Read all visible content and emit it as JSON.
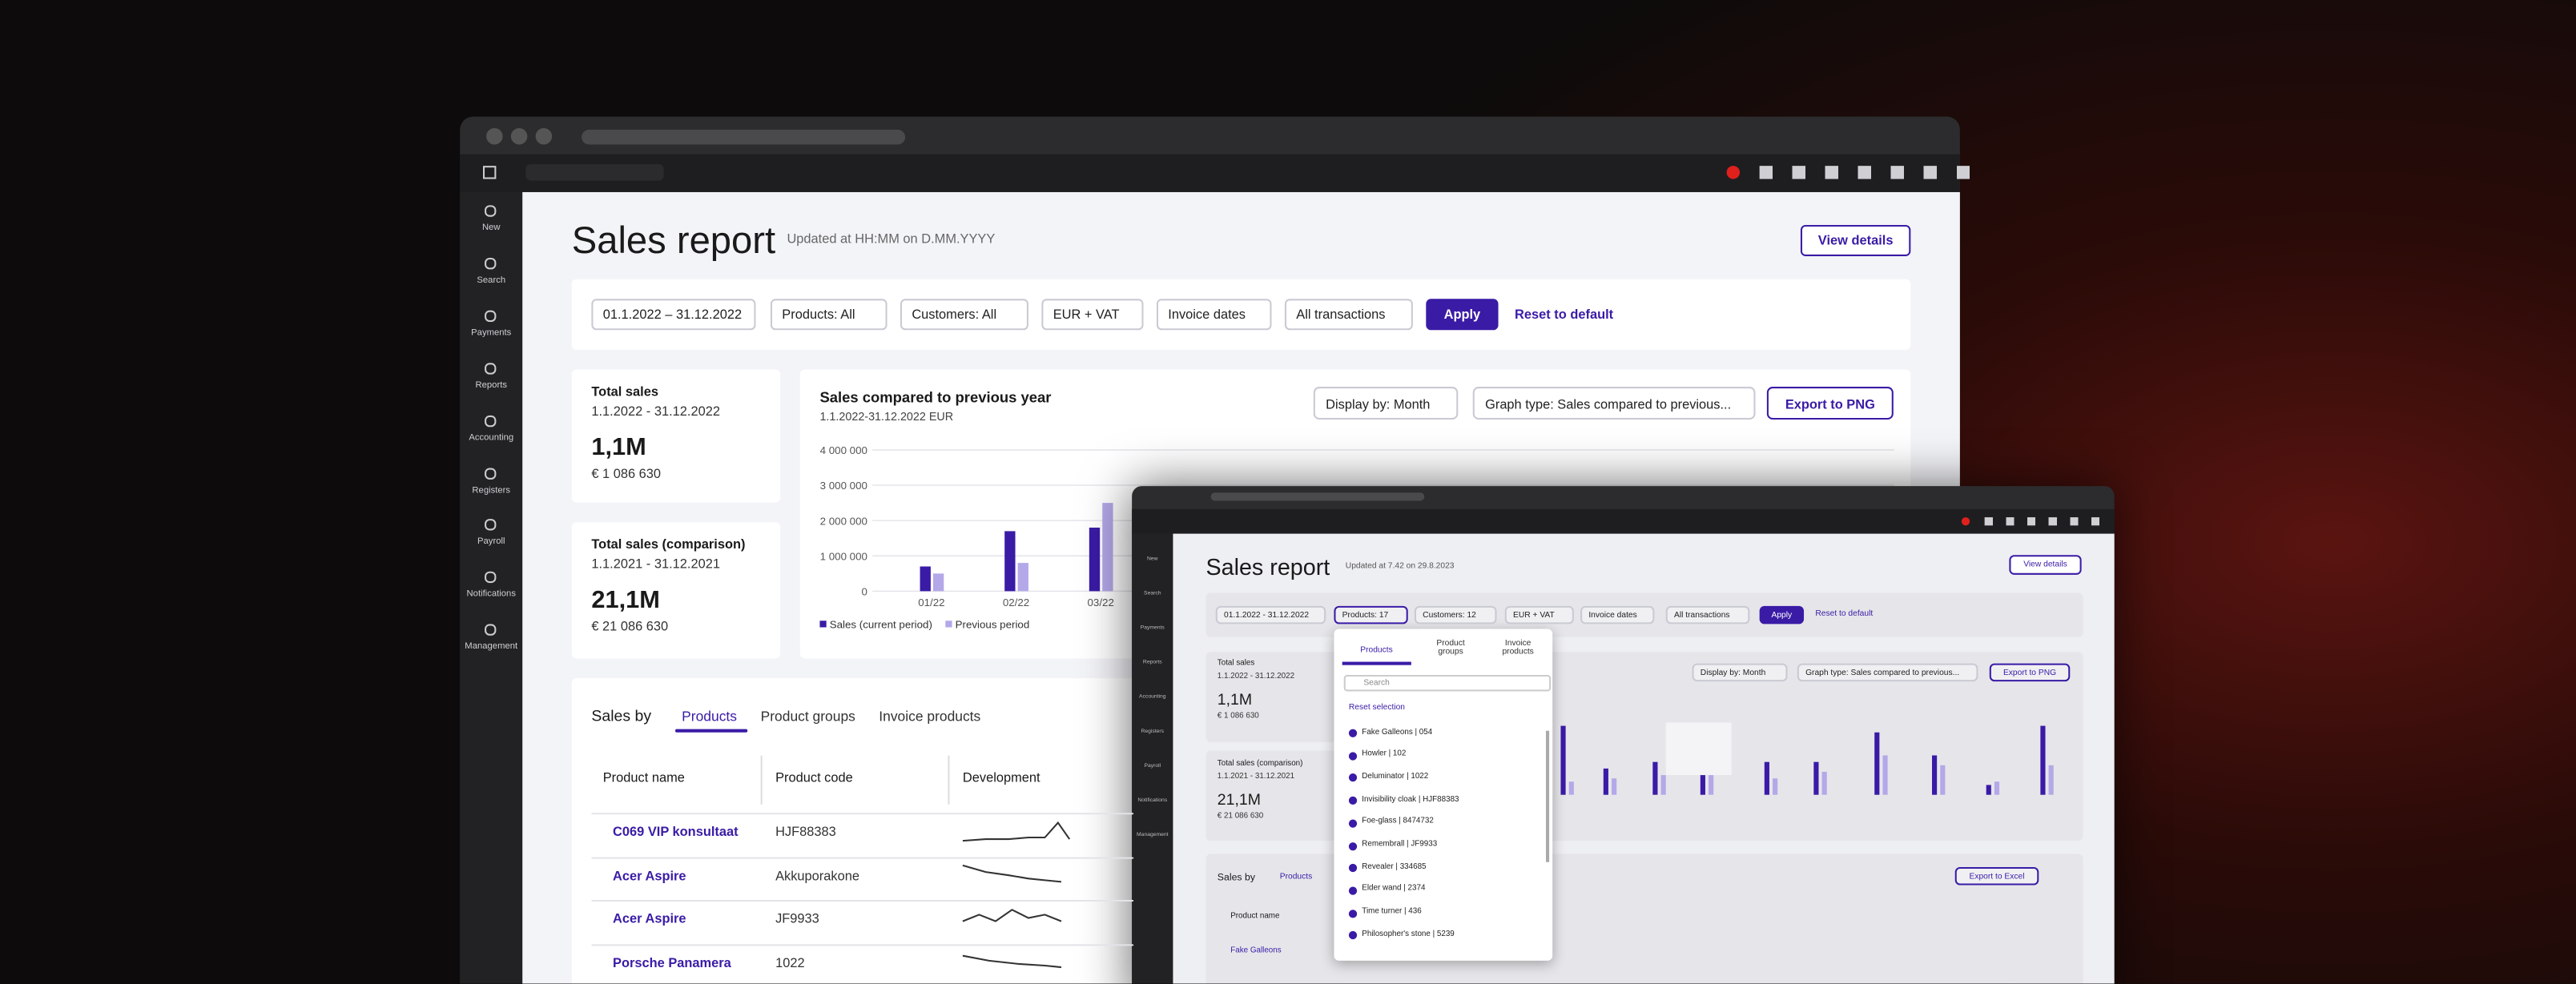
{
  "sidebar": [
    "New",
    "Search",
    "Payments",
    "Reports",
    "Accounting",
    "Registers",
    "Payroll",
    "Notifications",
    "Management"
  ],
  "header": {
    "title": "Sales report",
    "updated": "Updated at HH:MM on D.MM.YYYY",
    "button": "View details"
  },
  "filters": {
    "chips": [
      "01.1.2022 – 31.12.2022",
      "Products:  All",
      "Customers:  All",
      "EUR + VAT",
      "Invoice dates",
      "All transactions"
    ],
    "apply": "Apply",
    "reset": "Reset to default"
  },
  "kpis": [
    {
      "label": "Total sales",
      "period": "1.1.2022 - 31.12.2022",
      "value": "1,1M",
      "exact": "€ 1 086 630"
    },
    {
      "label": "Total sales (comparison)",
      "period": "1.1.2021 - 31.12.2021",
      "value": "21,1M",
      "exact": "€ 21 086 630"
    }
  ],
  "chart_data": {
    "type": "bar",
    "title": "Sales compared to previous year",
    "subtitle": "1.1.2022-31.12.2022  EUR",
    "display_by": "Display by:  Month",
    "graph_type": "Graph type:  Sales compared to previous...",
    "export": "Export to PNG",
    "categories": [
      "01/22",
      "02/22",
      "03/22"
    ],
    "series": [
      {
        "name": "Sales (current period)",
        "color": "#3a1ba6",
        "values": [
          700000,
          1700000,
          1800000
        ]
      },
      {
        "name": "Previous period",
        "color": "#b4a8e8",
        "values": [
          500000,
          800000,
          2500000
        ]
      }
    ],
    "ylim": [
      0,
      4000000
    ],
    "yticks": [
      0,
      {
        "value": 1000000,
        "label": "1 000 000"
      },
      {
        "value": 2000000,
        "label": "2 000 000"
      },
      {
        "value": 3000000,
        "label": "3 000 000"
      },
      {
        "value": 4000000,
        "label": "4 000 000"
      }
    ],
    "grid": true
  },
  "sales_by": {
    "title": "Sales by",
    "tabs": [
      "Products",
      "Product groups",
      "Invoice products"
    ],
    "columns": [
      "Product name",
      "Product code",
      "Development"
    ],
    "rows": [
      [
        "C069 VIP konsultaat",
        "HJF88383"
      ],
      [
        "Acer Aspire",
        "Akkuporakone"
      ],
      [
        "Acer Aspire",
        "JF9933"
      ],
      [
        "Porsche Panamera",
        "1022"
      ]
    ]
  },
  "preview": {
    "title": "Sales report",
    "updated": "Updated at 7.42 on 29.8.2023",
    "button": "View details",
    "chips": [
      "01.1.2022 - 31.12.2022",
      "Products: 17",
      "Customers: 12",
      "EUR + VAT",
      "Invoice dates",
      "All transactions"
    ],
    "apply": "Apply",
    "reset": "Reset to default",
    "dropdown": {
      "tabs": [
        "Products",
        "Product groups",
        "Invoice products"
      ],
      "search": "Search",
      "reset": "Reset selection",
      "items": [
        "Fake Galleons | 054",
        "Howler | 102",
        "Deluminator | 1022",
        "Invisibility cloak | HJF88383",
        "Foe-glass | 8474732",
        "Remembrall | JF9933",
        "Revealer | 334685",
        "Elder wand | 2374",
        "Time turner | 436",
        "Philosopher's stone | 5239"
      ]
    },
    "kpis": [
      {
        "label": "Total sales",
        "period": "1.1.2022 - 31.12.2022",
        "value": "1,1M",
        "exact": "€ 1 086 630"
      },
      {
        "label": "Total sales (comparison)",
        "period": "1.1.2021 - 31.12.2021",
        "value": "21,1M",
        "exact": "€ 21 086 630"
      }
    ],
    "display_by": "Display by: Month",
    "graph_type": "Graph type: Sales compared to previous...",
    "export": "Export to PNG",
    "sales_by": "Sales by",
    "tab": "Products",
    "export_excel": "Export to Excel",
    "column": "Product name",
    "first_row": "Fake Galleons"
  }
}
